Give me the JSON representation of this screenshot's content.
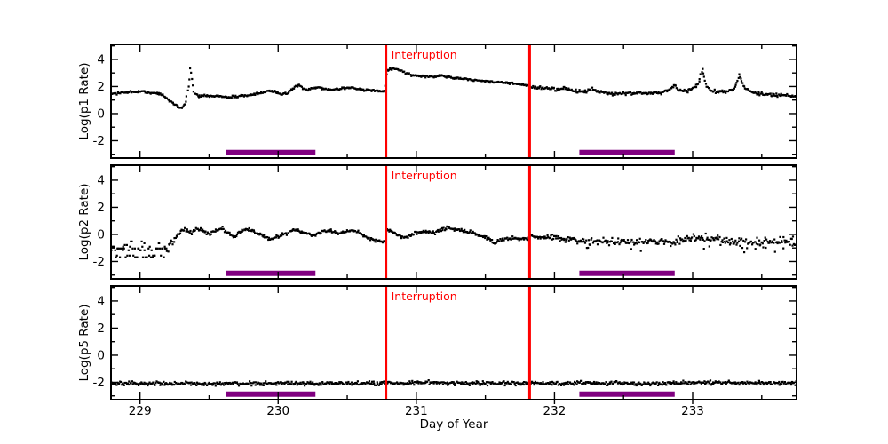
{
  "figure": {
    "background": "#ffffff",
    "axis_color": "#000000",
    "marker_color": "#000000"
  },
  "chart_data": {
    "type": "scatter",
    "title": "",
    "xlabel": "Day of Year",
    "x": {
      "label": "Day of Year",
      "lim": [
        228.79,
        233.752
      ],
      "ticks": [
        229,
        230,
        231,
        232,
        233
      ],
      "minor_step": 0.5
    },
    "y": {
      "lim": [
        -3.28,
        5.11
      ],
      "ticks": [
        -2,
        0,
        2,
        4
      ],
      "minor_step": 1
    },
    "annotations": {
      "interruption_lines": {
        "label": "Interruption",
        "x": [
          230.78,
          231.82
        ],
        "color": "#ff0000"
      },
      "coverage_bars": {
        "color": "#800080",
        "y_value": -2.87,
        "x_ranges": [
          [
            229.62,
            230.27
          ],
          [
            232.18,
            232.87
          ]
        ]
      }
    },
    "sample_step": 0.0062,
    "panels": [
      {
        "ylabel": "Log(p1 Rate)",
        "trend": [
          [
            228.79,
            1.45
          ],
          [
            228.95,
            1.6
          ],
          [
            229.05,
            1.6
          ],
          [
            229.15,
            1.45
          ],
          [
            229.2,
            1.1
          ],
          [
            229.26,
            0.6
          ],
          [
            229.3,
            0.35
          ],
          [
            229.33,
            0.8
          ],
          [
            229.355,
            2.2
          ],
          [
            229.365,
            3.5
          ],
          [
            229.375,
            2.6
          ],
          [
            229.39,
            1.55
          ],
          [
            229.42,
            1.3
          ],
          [
            229.55,
            1.3
          ],
          [
            229.65,
            1.22
          ],
          [
            229.75,
            1.3
          ],
          [
            229.85,
            1.45
          ],
          [
            229.92,
            1.68
          ],
          [
            229.97,
            1.65
          ],
          [
            230.02,
            1.45
          ],
          [
            230.07,
            1.5
          ],
          [
            230.12,
            2.0
          ],
          [
            230.15,
            2.1
          ],
          [
            230.18,
            1.85
          ],
          [
            230.22,
            1.75
          ],
          [
            230.27,
            1.95
          ],
          [
            230.32,
            1.85
          ],
          [
            230.4,
            1.78
          ],
          [
            230.47,
            1.85
          ],
          [
            230.53,
            1.95
          ],
          [
            230.58,
            1.8
          ],
          [
            230.65,
            1.72
          ],
          [
            230.72,
            1.68
          ],
          [
            230.775,
            1.65
          ],
          [
            230.785,
            3.2
          ],
          [
            230.83,
            3.35
          ],
          [
            230.88,
            3.2
          ],
          [
            230.93,
            2.95
          ],
          [
            230.98,
            2.8
          ],
          [
            231.05,
            2.78
          ],
          [
            231.12,
            2.7
          ],
          [
            231.18,
            2.82
          ],
          [
            231.23,
            2.72
          ],
          [
            231.3,
            2.6
          ],
          [
            231.38,
            2.52
          ],
          [
            231.45,
            2.45
          ],
          [
            231.55,
            2.35
          ],
          [
            231.65,
            2.28
          ],
          [
            231.75,
            2.15
          ],
          [
            231.815,
            2.05
          ],
          [
            231.825,
            1.95
          ],
          [
            231.9,
            1.9
          ],
          [
            231.97,
            1.88
          ],
          [
            232.03,
            1.78
          ],
          [
            232.08,
            1.88
          ],
          [
            232.13,
            1.72
          ],
          [
            232.2,
            1.6
          ],
          [
            232.27,
            1.78
          ],
          [
            232.33,
            1.62
          ],
          [
            232.4,
            1.5
          ],
          [
            232.47,
            1.45
          ],
          [
            232.55,
            1.52
          ],
          [
            232.62,
            1.55
          ],
          [
            232.7,
            1.48
          ],
          [
            232.78,
            1.55
          ],
          [
            232.84,
            1.85
          ],
          [
            232.87,
            2.1
          ],
          [
            232.9,
            1.75
          ],
          [
            232.95,
            1.62
          ],
          [
            233.0,
            1.85
          ],
          [
            233.04,
            2.2
          ],
          [
            233.07,
            3.3
          ],
          [
            233.1,
            2.0
          ],
          [
            233.13,
            1.7
          ],
          [
            233.18,
            1.58
          ],
          [
            233.25,
            1.65
          ],
          [
            233.3,
            1.8
          ],
          [
            233.34,
            2.85
          ],
          [
            233.38,
            1.9
          ],
          [
            233.42,
            1.6
          ],
          [
            233.48,
            1.45
          ],
          [
            233.55,
            1.42
          ],
          [
            233.6,
            1.38
          ],
          [
            233.68,
            1.28
          ],
          [
            233.752,
            1.3
          ]
        ],
        "noise": [
          [
            228.79,
            0.04
          ],
          [
            231.8,
            0.04
          ],
          [
            232.0,
            0.06
          ],
          [
            233.752,
            0.07
          ]
        ]
      },
      {
        "ylabel": "Log(p2 Rate)",
        "cloud_end": 229.19,
        "trend": [
          [
            228.79,
            -1.15
          ],
          [
            229.19,
            -1.1
          ],
          [
            229.22,
            -0.7
          ],
          [
            229.26,
            -0.2
          ],
          [
            229.3,
            0.3
          ],
          [
            229.33,
            0.4
          ],
          [
            229.37,
            0.1
          ],
          [
            229.41,
            0.42
          ],
          [
            229.45,
            0.3
          ],
          [
            229.5,
            0.0
          ],
          [
            229.55,
            0.38
          ],
          [
            229.6,
            0.42
          ],
          [
            229.64,
            0.1
          ],
          [
            229.68,
            -0.2
          ],
          [
            229.72,
            0.15
          ],
          [
            229.76,
            0.42
          ],
          [
            229.8,
            0.35
          ],
          [
            229.85,
            0.1
          ],
          [
            229.9,
            -0.15
          ],
          [
            229.95,
            -0.32
          ],
          [
            230.0,
            -0.18
          ],
          [
            230.05,
            0.05
          ],
          [
            230.1,
            0.22
          ],
          [
            230.15,
            0.28
          ],
          [
            230.2,
            0.12
          ],
          [
            230.25,
            -0.05
          ],
          [
            230.3,
            0.08
          ],
          [
            230.35,
            0.3
          ],
          [
            230.4,
            0.2
          ],
          [
            230.45,
            0.05
          ],
          [
            230.5,
            0.22
          ],
          [
            230.55,
            0.32
          ],
          [
            230.6,
            0.05
          ],
          [
            230.65,
            -0.25
          ],
          [
            230.7,
            -0.45
          ],
          [
            230.75,
            -0.55
          ],
          [
            230.775,
            -0.5
          ],
          [
            230.785,
            0.4
          ],
          [
            230.82,
            0.25
          ],
          [
            230.87,
            -0.1
          ],
          [
            230.92,
            -0.25
          ],
          [
            230.97,
            0.0
          ],
          [
            231.02,
            0.15
          ],
          [
            231.08,
            0.22
          ],
          [
            231.13,
            0.12
          ],
          [
            231.18,
            0.3
          ],
          [
            231.23,
            0.48
          ],
          [
            231.28,
            0.4
          ],
          [
            231.33,
            0.28
          ],
          [
            231.4,
            0.15
          ],
          [
            231.46,
            -0.05
          ],
          [
            231.52,
            -0.3
          ],
          [
            231.56,
            -0.62
          ],
          [
            231.6,
            -0.45
          ],
          [
            231.65,
            -0.3
          ],
          [
            231.72,
            -0.28
          ],
          [
            231.78,
            -0.35
          ],
          [
            231.815,
            -0.3
          ],
          [
            231.83,
            -0.12
          ],
          [
            231.9,
            -0.18
          ],
          [
            232.0,
            -0.25
          ],
          [
            232.1,
            -0.38
          ],
          [
            232.2,
            -0.45
          ],
          [
            232.3,
            -0.5
          ],
          [
            232.4,
            -0.55
          ],
          [
            232.5,
            -0.52
          ],
          [
            232.6,
            -0.6
          ],
          [
            232.7,
            -0.5
          ],
          [
            232.8,
            -0.55
          ],
          [
            232.9,
            -0.5
          ],
          [
            233.0,
            -0.35
          ],
          [
            233.08,
            -0.28
          ],
          [
            233.18,
            -0.4
          ],
          [
            233.3,
            -0.55
          ],
          [
            233.4,
            -0.6
          ],
          [
            233.5,
            -0.55
          ],
          [
            233.6,
            -0.6
          ],
          [
            233.68,
            -0.55
          ],
          [
            233.752,
            -0.6
          ]
        ],
        "noise": [
          [
            228.79,
            0.22
          ],
          [
            229.19,
            0.22
          ],
          [
            229.3,
            0.07
          ],
          [
            230.7,
            0.06
          ],
          [
            231.8,
            0.06
          ],
          [
            232.0,
            0.1
          ],
          [
            232.5,
            0.13
          ],
          [
            233.0,
            0.16
          ],
          [
            233.4,
            0.18
          ],
          [
            233.752,
            0.22
          ]
        ]
      },
      {
        "ylabel": "Log(p5 Rate)",
        "trend": [
          [
            228.79,
            -2.08
          ],
          [
            229.5,
            -2.1
          ],
          [
            230.0,
            -2.07
          ],
          [
            230.5,
            -2.1
          ],
          [
            231.0,
            -2.02
          ],
          [
            231.1,
            -2.0
          ],
          [
            231.3,
            -2.07
          ],
          [
            231.8,
            -2.09
          ],
          [
            232.2,
            -2.05
          ],
          [
            232.6,
            -2.08
          ],
          [
            233.1,
            -2.02
          ],
          [
            233.4,
            -2.05
          ],
          [
            233.752,
            -2.05
          ]
        ],
        "noise": [
          [
            228.79,
            0.07
          ],
          [
            233.752,
            0.07
          ]
        ]
      }
    ]
  }
}
